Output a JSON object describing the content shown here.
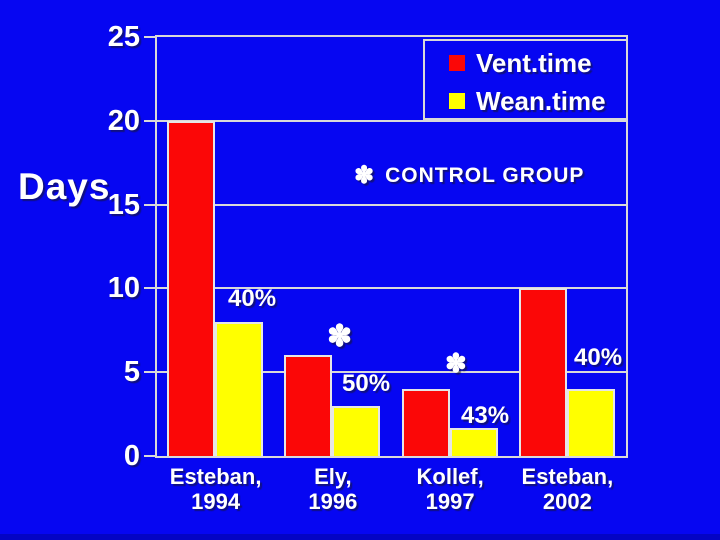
{
  "colors": {
    "background": "#0606f2",
    "grid": "#d9d9d9",
    "vent": "#fb0707",
    "wean": "#ffff00",
    "text": "#ffffff"
  },
  "legend": {
    "items": [
      {
        "label": "Vent.time",
        "color": "#fb0707"
      },
      {
        "label": "Wean.time",
        "color": "#ffff00"
      }
    ]
  },
  "control_note": {
    "symbol": "✽",
    "label": "CONTROL GROUP"
  },
  "annotations": [
    {
      "text": "40%",
      "kind": "pct",
      "group": "Esteban, 1994"
    },
    {
      "text": "✽",
      "kind": "asterisk",
      "group": "Ely, 1996"
    },
    {
      "text": "50%",
      "kind": "pct",
      "group": "Ely, 1996"
    },
    {
      "text": "✽",
      "kind": "asterisk",
      "group": "Kollef, 1997"
    },
    {
      "text": "43%",
      "kind": "pct",
      "group": "Kollef, 1997"
    },
    {
      "text": "40%",
      "kind": "pct",
      "group": "Esteban, 2002"
    }
  ],
  "chart_data": {
    "type": "bar",
    "ylabel": "Days",
    "ylim": [
      0,
      25
    ],
    "yticks": [
      0,
      5,
      10,
      15,
      20,
      25
    ],
    "grid": true,
    "legend_position": "top-right",
    "categories": [
      [
        "Esteban,",
        "1994"
      ],
      [
        "Ely,",
        "1996"
      ],
      [
        "Kollef,",
        "1997"
      ],
      [
        "Esteban,",
        "2002"
      ]
    ],
    "series": [
      {
        "name": "Vent.time",
        "color": "#fb0707",
        "values": [
          20,
          6,
          4,
          10
        ]
      },
      {
        "name": "Wean.time",
        "color": "#ffff00",
        "values": [
          8,
          3,
          1.7,
          4
        ]
      }
    ]
  }
}
